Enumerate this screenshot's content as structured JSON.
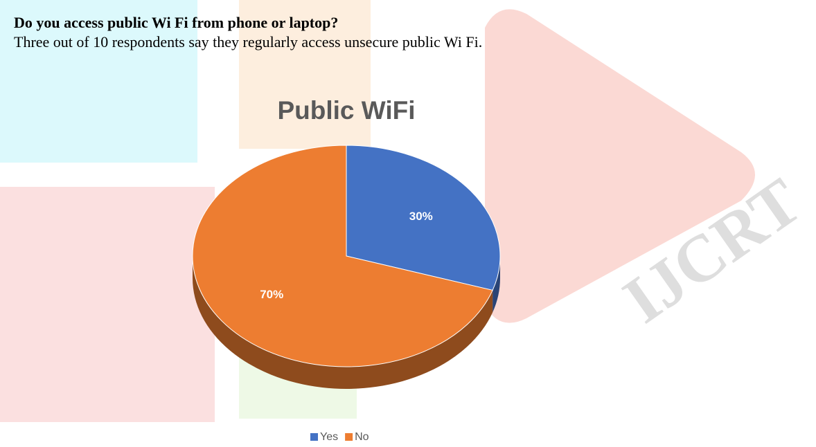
{
  "document": {
    "heading": "Do you access public Wi Fi from phone or laptop?",
    "text": "Three out of 10 respondents say they regularly access unsecure public Wi Fi.",
    "watermark": "IJCRT"
  },
  "chart_data": {
    "type": "pie",
    "title": "Public WiFi",
    "categories": [
      "Yes",
      "No"
    ],
    "values": [
      30,
      70
    ],
    "value_labels": [
      "30%",
      "70%"
    ],
    "colors": [
      "#4472c4",
      "#ed7d31"
    ],
    "legend": "bottom"
  }
}
